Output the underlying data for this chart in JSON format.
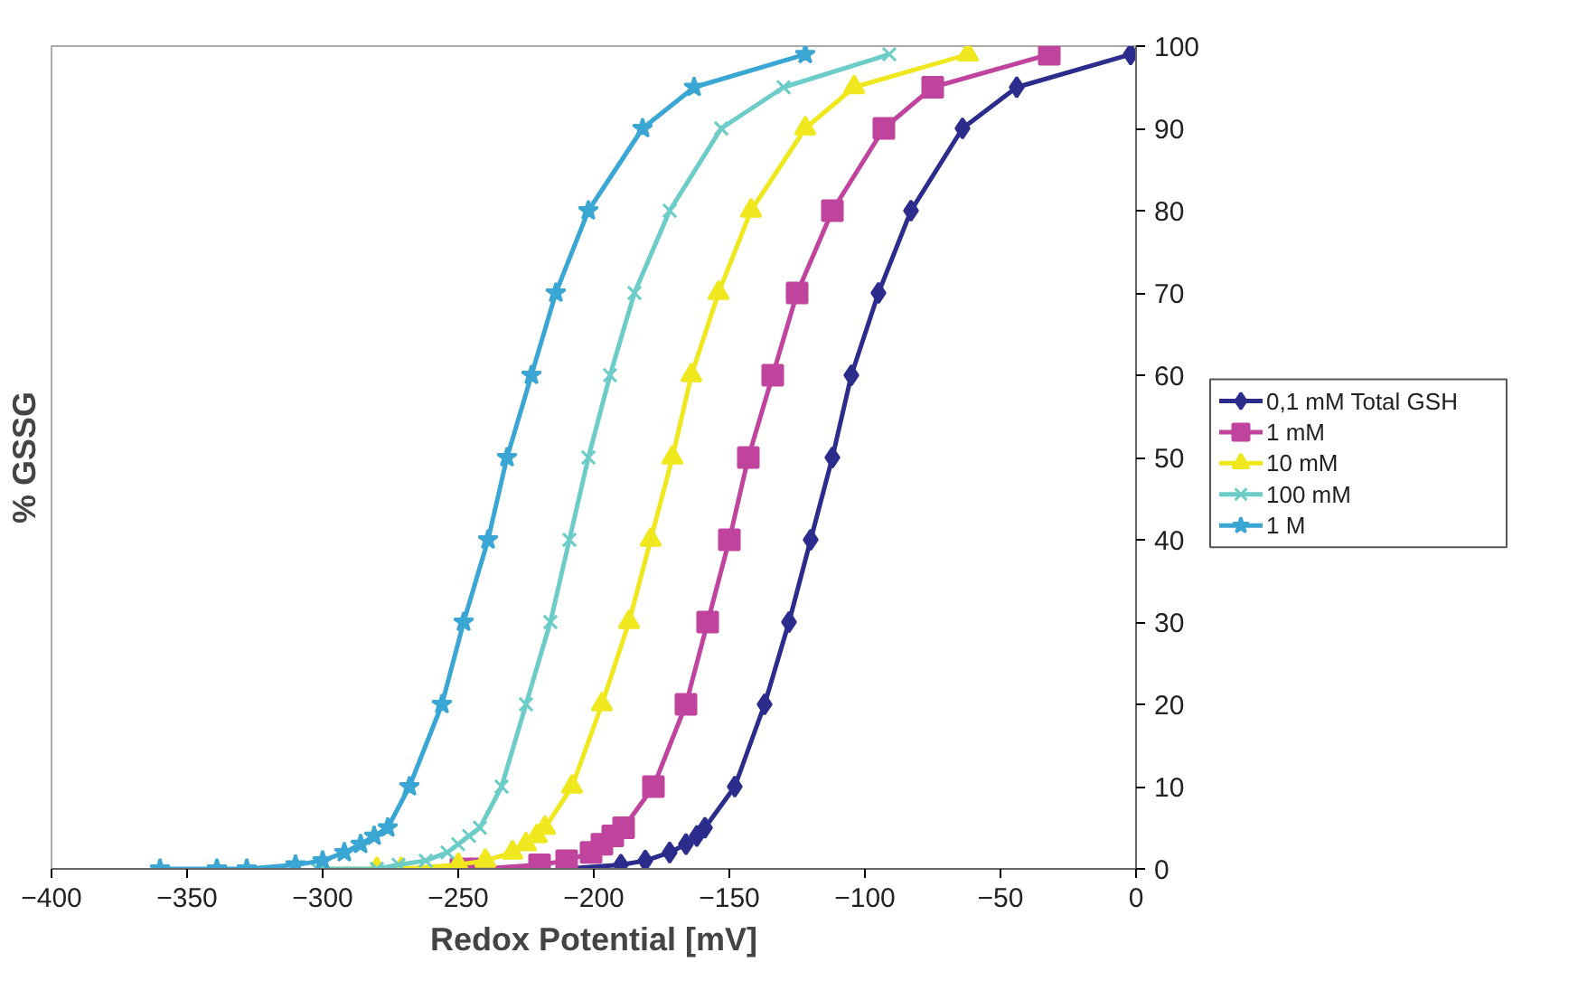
{
  "chart_data": {
    "type": "line",
    "xlabel": "Redox Potential [mV]",
    "ylabel": "% GSSG",
    "xlim": [
      -400,
      0
    ],
    "ylim": [
      0,
      100
    ],
    "xticks": [
      -400,
      -350,
      -300,
      -250,
      -200,
      -150,
      -100,
      -50,
      0
    ],
    "yticks": [
      0,
      10,
      20,
      30,
      40,
      50,
      60,
      70,
      80,
      90,
      100
    ],
    "grid": false,
    "legend": "right",
    "series": [
      {
        "name": "0,1 mM Total GSH",
        "color": "#2b2c8c",
        "marker": "diamond",
        "x": [
          -211,
          -190,
          -181,
          -172,
          -166,
          -162,
          -159,
          -148,
          -137,
          -128,
          -120,
          -112,
          -105,
          -95,
          -83,
          -64,
          -44,
          -2
        ],
        "values": [
          0,
          0.5,
          1,
          2,
          3,
          4,
          5,
          10,
          20,
          30,
          40,
          50,
          60,
          70,
          80,
          90,
          95,
          99
        ]
      },
      {
        "name": "1 mM",
        "color": "#c0449e",
        "marker": "square",
        "x": [
          -249,
          -242,
          -220,
          -210,
          -201,
          -197,
          -193,
          -189,
          -178,
          -166,
          -158,
          -150,
          -143,
          -134,
          -125,
          -112,
          -93,
          -75,
          -32
        ],
        "values": [
          0,
          0,
          0.5,
          1,
          2,
          3,
          4,
          5,
          10,
          20,
          30,
          40,
          50,
          60,
          70,
          80,
          90,
          95,
          99
        ]
      },
      {
        "name": "10 mM",
        "color": "#f0e81e",
        "marker": "triangle",
        "x": [
          -300,
          -280,
          -271,
          -250,
          -240,
          -230,
          -225,
          -221,
          -218,
          -208,
          -197,
          -187,
          -179,
          -171,
          -164,
          -154,
          -142,
          -122,
          -104,
          -62
        ],
        "values": [
          0,
          0,
          0,
          0.5,
          1,
          2,
          3,
          4,
          5,
          10,
          20,
          30,
          40,
          50,
          60,
          70,
          80,
          90,
          95,
          99
        ]
      },
      {
        "name": "100 mM",
        "color": "#6cccc8",
        "marker": "cross",
        "x": [
          -302,
          -280,
          -272,
          -262,
          -254,
          -250,
          -246,
          -242,
          -234,
          -225,
          -216,
          -209,
          -202,
          -194,
          -185,
          -172,
          -153,
          -130,
          -91
        ],
        "values": [
          0,
          0,
          0.5,
          1,
          2,
          3,
          4,
          5,
          10,
          20,
          30,
          40,
          50,
          60,
          70,
          80,
          90,
          95,
          99
        ]
      },
      {
        "name": "1 M",
        "color": "#3aa6d4",
        "marker": "star",
        "x": [
          -360,
          -339,
          -328,
          -310,
          -300,
          -292,
          -286,
          -281,
          -276,
          -268,
          -256,
          -248,
          -239,
          -232,
          -223,
          -214,
          -202,
          -182,
          -163,
          -122
        ],
        "values": [
          0,
          0,
          0,
          0.5,
          1,
          2,
          3,
          4,
          5,
          10,
          20,
          30,
          40,
          50,
          60,
          70,
          80,
          90,
          95,
          99
        ]
      }
    ]
  }
}
